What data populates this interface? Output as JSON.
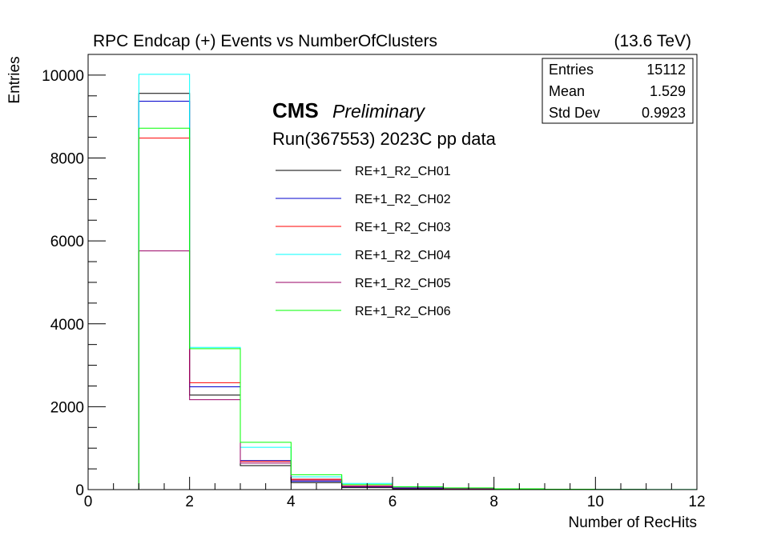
{
  "chart_data": {
    "type": "histogram",
    "title": "RPC Endcap (+)  Events vs NumberOfClusters",
    "energy_label": "(13.6 TeV)",
    "xlabel": "Number of RecHits",
    "ylabel": "Entries",
    "xlim": [
      0,
      12
    ],
    "ylim": [
      0,
      10500
    ],
    "x_ticks": [
      "0",
      "2",
      "4",
      "6",
      "8",
      "10",
      "12"
    ],
    "y_ticks": [
      "0",
      "2000",
      "4000",
      "6000",
      "8000",
      "10000"
    ],
    "grid": false,
    "bin_edges": [
      0,
      1,
      2,
      3,
      4,
      5,
      6,
      7,
      8,
      9,
      10,
      11,
      12
    ],
    "cms_label": "CMS",
    "cms_sublabel": "Preliminary",
    "run_label": "Run(367553) 2023C pp data",
    "stats": {
      "rows": [
        {
          "key": "Entries",
          "value": "15112"
        },
        {
          "key": "Mean",
          "value": "1.529"
        },
        {
          "key": "Std Dev",
          "value": "0.9923"
        }
      ]
    },
    "legend_position": "center",
    "series": [
      {
        "name": "RE+1_R2_CH01",
        "color": "#000000",
        "values": [
          0,
          9560,
          2280,
          580,
          170,
          50,
          20,
          10,
          5,
          3,
          2,
          1
        ]
      },
      {
        "name": "RE+1_R2_CH02",
        "color": "#0000cc",
        "values": [
          0,
          9370,
          2480,
          700,
          200,
          70,
          30,
          15,
          8,
          4,
          2,
          1
        ]
      },
      {
        "name": "RE+1_R2_CH03",
        "color": "#ff0000",
        "values": [
          0,
          8480,
          2580,
          680,
          250,
          90,
          40,
          20,
          10,
          5,
          3,
          1
        ]
      },
      {
        "name": "RE+1_R2_CH04",
        "color": "#00ffff",
        "values": [
          0,
          10020,
          3430,
          1020,
          310,
          150,
          60,
          30,
          15,
          8,
          4,
          2
        ]
      },
      {
        "name": "RE+1_R2_CH05",
        "color": "#990066",
        "values": [
          0,
          5760,
          2170,
          640,
          230,
          80,
          40,
          20,
          10,
          5,
          3,
          1
        ]
      },
      {
        "name": "RE+1_R2_CH06",
        "color": "#00ff00",
        "values": [
          0,
          8720,
          3400,
          1140,
          360,
          120,
          70,
          40,
          20,
          10,
          5,
          2
        ]
      }
    ]
  }
}
